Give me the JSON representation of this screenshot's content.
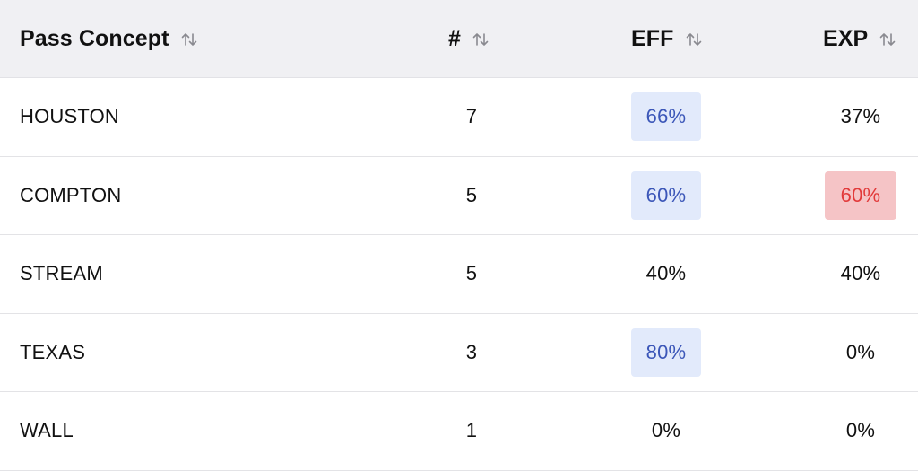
{
  "table": {
    "columns": [
      {
        "key": "concept",
        "label": "Pass Concept"
      },
      {
        "key": "count",
        "label": "#"
      },
      {
        "key": "eff",
        "label": "EFF"
      },
      {
        "key": "exp",
        "label": "EXP"
      }
    ],
    "rows": [
      {
        "concept": "HOUSTON",
        "count": "7",
        "eff": "66%",
        "eff_highlight": "good",
        "exp": "37%",
        "exp_highlight": "none"
      },
      {
        "concept": "COMPTON",
        "count": "5",
        "eff": "60%",
        "eff_highlight": "good",
        "exp": "60%",
        "exp_highlight": "bad"
      },
      {
        "concept": "STREAM",
        "count": "5",
        "eff": "40%",
        "eff_highlight": "none",
        "exp": "40%",
        "exp_highlight": "none"
      },
      {
        "concept": "TEXAS",
        "count": "3",
        "eff": "80%",
        "eff_highlight": "good",
        "exp": "0%",
        "exp_highlight": "none"
      },
      {
        "concept": "WALL",
        "count": "1",
        "eff": "0%",
        "eff_highlight": "none",
        "exp": "0%",
        "exp_highlight": "none"
      }
    ]
  },
  "icons": {
    "sort": "sort-arrows-icon"
  },
  "colors": {
    "header_bg": "#f0f0f3",
    "good_bg": "#e2eafb",
    "good_text": "#3b56b8",
    "bad_bg": "#f5c4c6",
    "bad_text": "#e23a3a"
  }
}
